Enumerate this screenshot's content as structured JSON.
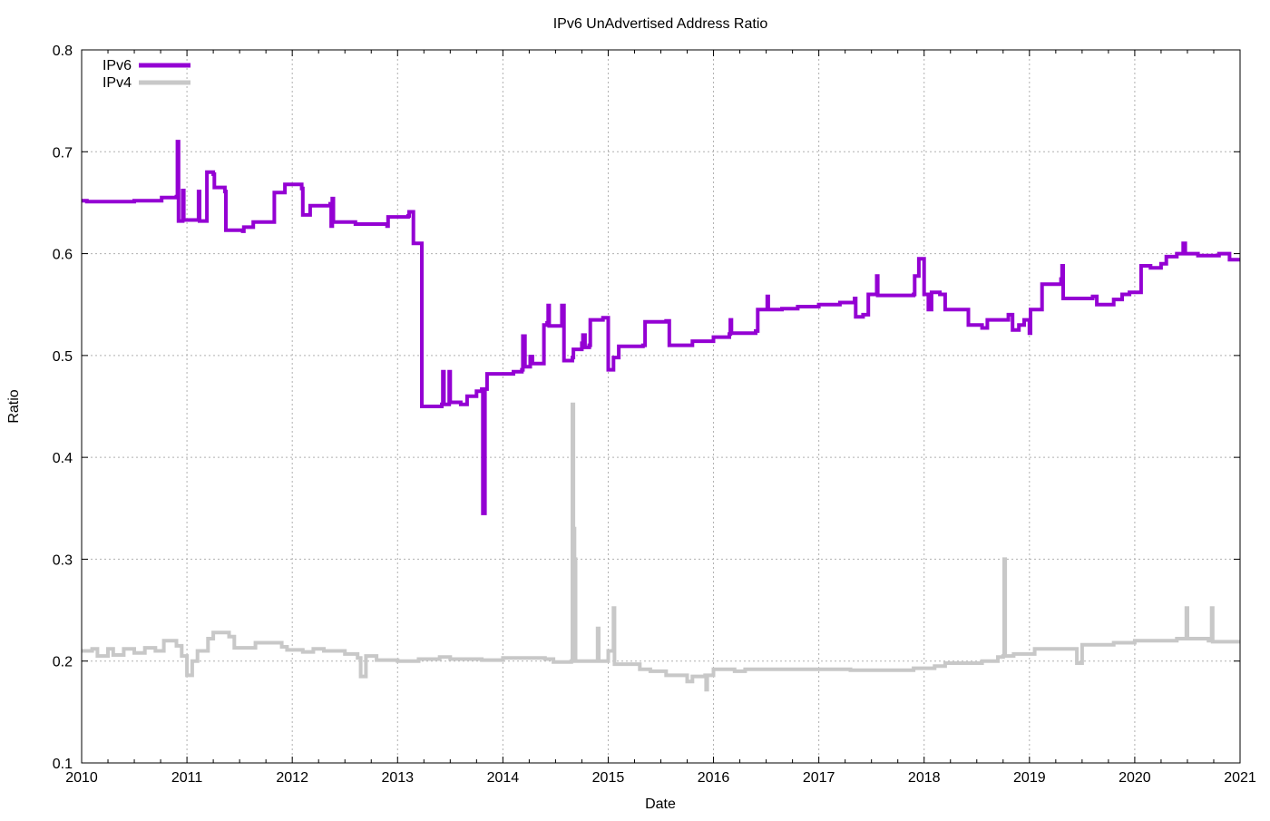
{
  "chart_data": {
    "type": "line",
    "title": "IPv6 UnAdvertised Address Ratio",
    "xlabel": "Date",
    "ylabel": "Ratio",
    "xlim": [
      2010,
      2021
    ],
    "ylim": [
      0.1,
      0.8
    ],
    "x_ticks": [
      "2010",
      "2011",
      "2012",
      "2013",
      "2014",
      "2015",
      "2016",
      "2017",
      "2018",
      "2019",
      "2020",
      "2021"
    ],
    "y_ticks": [
      "0.1",
      "0.2",
      "0.3",
      "0.4",
      "0.5",
      "0.6",
      "0.7",
      "0.8"
    ],
    "grid": true,
    "legend_position": "top-left",
    "series": [
      {
        "name": "IPv6",
        "color": "#9400d3",
        "points": [
          [
            2010.0,
            0.652
          ],
          [
            2010.05,
            0.651
          ],
          [
            2010.5,
            0.652
          ],
          [
            2010.75,
            0.652
          ],
          [
            2010.76,
            0.655
          ],
          [
            2010.9,
            0.656
          ],
          [
            2010.91,
            0.71
          ],
          [
            2010.92,
            0.632
          ],
          [
            2010.96,
            0.662
          ],
          [
            2010.97,
            0.633
          ],
          [
            2011.1,
            0.633
          ],
          [
            2011.11,
            0.661
          ],
          [
            2011.12,
            0.632
          ],
          [
            2011.18,
            0.632
          ],
          [
            2011.19,
            0.68
          ],
          [
            2011.25,
            0.678
          ],
          [
            2011.26,
            0.665
          ],
          [
            2011.36,
            0.661
          ],
          [
            2011.37,
            0.623
          ],
          [
            2011.53,
            0.622
          ],
          [
            2011.54,
            0.626
          ],
          [
            2011.62,
            0.626
          ],
          [
            2011.63,
            0.631
          ],
          [
            2011.82,
            0.631
          ],
          [
            2011.83,
            0.66
          ],
          [
            2011.93,
            0.668
          ],
          [
            2012.09,
            0.664
          ],
          [
            2012.1,
            0.638
          ],
          [
            2012.16,
            0.638
          ],
          [
            2012.17,
            0.647
          ],
          [
            2012.36,
            0.649
          ],
          [
            2012.37,
            0.627
          ],
          [
            2012.38,
            0.654
          ],
          [
            2012.39,
            0.631
          ],
          [
            2012.6,
            0.629
          ],
          [
            2012.9,
            0.627
          ],
          [
            2012.91,
            0.636
          ],
          [
            2013.1,
            0.637
          ],
          [
            2013.11,
            0.641
          ],
          [
            2013.15,
            0.61
          ],
          [
            2013.23,
            0.45
          ],
          [
            2013.42,
            0.452
          ],
          [
            2013.43,
            0.484
          ],
          [
            2013.44,
            0.452
          ],
          [
            2013.48,
            0.452
          ],
          [
            2013.49,
            0.484
          ],
          [
            2013.5,
            0.454
          ],
          [
            2013.6,
            0.452
          ],
          [
            2013.66,
            0.46
          ],
          [
            2013.75,
            0.465
          ],
          [
            2013.8,
            0.467
          ],
          [
            2013.81,
            0.345
          ],
          [
            2013.83,
            0.467
          ],
          [
            2013.85,
            0.482
          ],
          [
            2014.1,
            0.484
          ],
          [
            2014.18,
            0.486
          ],
          [
            2014.19,
            0.519
          ],
          [
            2014.21,
            0.489
          ],
          [
            2014.26,
            0.499
          ],
          [
            2014.28,
            0.492
          ],
          [
            2014.34,
            0.492
          ],
          [
            2014.39,
            0.53
          ],
          [
            2014.42,
            0.532
          ],
          [
            2014.43,
            0.549
          ],
          [
            2014.44,
            0.529
          ],
          [
            2014.55,
            0.529
          ],
          [
            2014.56,
            0.549
          ],
          [
            2014.58,
            0.495
          ],
          [
            2014.66,
            0.498
          ],
          [
            2014.67,
            0.506
          ],
          [
            2014.75,
            0.512
          ],
          [
            2014.76,
            0.52
          ],
          [
            2014.78,
            0.508
          ],
          [
            2014.82,
            0.51
          ],
          [
            2014.83,
            0.535
          ],
          [
            2014.95,
            0.537
          ],
          [
            2015.0,
            0.486
          ],
          [
            2015.05,
            0.498
          ],
          [
            2015.1,
            0.509
          ],
          [
            2015.33,
            0.51
          ],
          [
            2015.35,
            0.533
          ],
          [
            2015.55,
            0.534
          ],
          [
            2015.58,
            0.51
          ],
          [
            2015.8,
            0.514
          ],
          [
            2016.0,
            0.518
          ],
          [
            2016.15,
            0.521
          ],
          [
            2016.16,
            0.535
          ],
          [
            2016.17,
            0.522
          ],
          [
            2016.4,
            0.524
          ],
          [
            2016.42,
            0.545
          ],
          [
            2016.51,
            0.558
          ],
          [
            2016.52,
            0.545
          ],
          [
            2016.65,
            0.546
          ],
          [
            2016.8,
            0.548
          ],
          [
            2017.0,
            0.55
          ],
          [
            2017.2,
            0.552
          ],
          [
            2017.34,
            0.556
          ],
          [
            2017.35,
            0.538
          ],
          [
            2017.42,
            0.54
          ],
          [
            2017.47,
            0.56
          ],
          [
            2017.55,
            0.578
          ],
          [
            2017.56,
            0.559
          ],
          [
            2017.9,
            0.56
          ],
          [
            2017.91,
            0.578
          ],
          [
            2017.95,
            0.595
          ],
          [
            2018.0,
            0.56
          ],
          [
            2018.04,
            0.545
          ],
          [
            2018.07,
            0.562
          ],
          [
            2018.15,
            0.56
          ],
          [
            2018.2,
            0.545
          ],
          [
            2018.4,
            0.545
          ],
          [
            2018.42,
            0.53
          ],
          [
            2018.55,
            0.527
          ],
          [
            2018.6,
            0.535
          ],
          [
            2018.8,
            0.54
          ],
          [
            2018.84,
            0.525
          ],
          [
            2018.9,
            0.53
          ],
          [
            2018.95,
            0.535
          ],
          [
            2019.0,
            0.522
          ],
          [
            2019.01,
            0.545
          ],
          [
            2019.1,
            0.545
          ],
          [
            2019.12,
            0.57
          ],
          [
            2019.3,
            0.575
          ],
          [
            2019.31,
            0.588
          ],
          [
            2019.32,
            0.556
          ],
          [
            2019.6,
            0.558
          ],
          [
            2019.64,
            0.55
          ],
          [
            2019.8,
            0.555
          ],
          [
            2019.88,
            0.56
          ],
          [
            2019.95,
            0.562
          ],
          [
            2020.04,
            0.562
          ],
          [
            2020.06,
            0.588
          ],
          [
            2020.15,
            0.586
          ],
          [
            2020.25,
            0.59
          ],
          [
            2020.3,
            0.597
          ],
          [
            2020.4,
            0.6
          ],
          [
            2020.45,
            0.6
          ],
          [
            2020.46,
            0.61
          ],
          [
            2020.48,
            0.6
          ],
          [
            2020.6,
            0.598
          ],
          [
            2020.75,
            0.598
          ],
          [
            2020.8,
            0.6
          ],
          [
            2020.9,
            0.594
          ],
          [
            2021.0,
            0.594
          ]
        ]
      },
      {
        "name": "IPv4",
        "color": "#c8c8c8",
        "points": [
          [
            2010.0,
            0.21
          ],
          [
            2010.1,
            0.212
          ],
          [
            2010.15,
            0.205
          ],
          [
            2010.25,
            0.212
          ],
          [
            2010.3,
            0.206
          ],
          [
            2010.4,
            0.212
          ],
          [
            2010.5,
            0.208
          ],
          [
            2010.6,
            0.213
          ],
          [
            2010.7,
            0.21
          ],
          [
            2010.78,
            0.22
          ],
          [
            2010.9,
            0.215
          ],
          [
            2010.95,
            0.205
          ],
          [
            2011.0,
            0.186
          ],
          [
            2011.05,
            0.2
          ],
          [
            2011.1,
            0.21
          ],
          [
            2011.2,
            0.222
          ],
          [
            2011.25,
            0.228
          ],
          [
            2011.4,
            0.224
          ],
          [
            2011.45,
            0.213
          ],
          [
            2011.6,
            0.213
          ],
          [
            2011.65,
            0.218
          ],
          [
            2011.9,
            0.214
          ],
          [
            2011.95,
            0.211
          ],
          [
            2012.1,
            0.209
          ],
          [
            2012.2,
            0.212
          ],
          [
            2012.3,
            0.21
          ],
          [
            2012.5,
            0.207
          ],
          [
            2012.62,
            0.203
          ],
          [
            2012.65,
            0.185
          ],
          [
            2012.7,
            0.205
          ],
          [
            2012.8,
            0.201
          ],
          [
            2013.0,
            0.2
          ],
          [
            2013.2,
            0.202
          ],
          [
            2013.4,
            0.204
          ],
          [
            2013.5,
            0.202
          ],
          [
            2013.8,
            0.201
          ],
          [
            2014.0,
            0.203
          ],
          [
            2014.2,
            0.203
          ],
          [
            2014.4,
            0.202
          ],
          [
            2014.48,
            0.199
          ],
          [
            2014.6,
            0.199
          ],
          [
            2014.65,
            0.2
          ],
          [
            2014.66,
            0.452
          ],
          [
            2014.67,
            0.33
          ],
          [
            2014.68,
            0.3
          ],
          [
            2014.69,
            0.2
          ],
          [
            2014.8,
            0.2
          ],
          [
            2014.9,
            0.232
          ],
          [
            2014.91,
            0.2
          ],
          [
            2015.0,
            0.21
          ],
          [
            2015.05,
            0.252
          ],
          [
            2015.06,
            0.197
          ],
          [
            2015.2,
            0.197
          ],
          [
            2015.3,
            0.192
          ],
          [
            2015.4,
            0.19
          ],
          [
            2015.55,
            0.186
          ],
          [
            2015.7,
            0.186
          ],
          [
            2015.75,
            0.18
          ],
          [
            2015.8,
            0.185
          ],
          [
            2015.92,
            0.186
          ],
          [
            2015.93,
            0.172
          ],
          [
            2015.94,
            0.186
          ],
          [
            2016.0,
            0.192
          ],
          [
            2016.2,
            0.19
          ],
          [
            2016.3,
            0.192
          ],
          [
            2016.7,
            0.192
          ],
          [
            2017.0,
            0.192
          ],
          [
            2017.3,
            0.191
          ],
          [
            2017.7,
            0.191
          ],
          [
            2017.9,
            0.193
          ],
          [
            2018.1,
            0.195
          ],
          [
            2018.2,
            0.198
          ],
          [
            2018.5,
            0.198
          ],
          [
            2018.55,
            0.2
          ],
          [
            2018.7,
            0.204
          ],
          [
            2018.75,
            0.205
          ],
          [
            2018.76,
            0.3
          ],
          [
            2018.77,
            0.205
          ],
          [
            2018.85,
            0.207
          ],
          [
            2019.0,
            0.207
          ],
          [
            2019.05,
            0.212
          ],
          [
            2019.4,
            0.212
          ],
          [
            2019.45,
            0.198
          ],
          [
            2019.5,
            0.216
          ],
          [
            2019.7,
            0.216
          ],
          [
            2019.8,
            0.218
          ],
          [
            2020.0,
            0.22
          ],
          [
            2020.2,
            0.22
          ],
          [
            2020.4,
            0.222
          ],
          [
            2020.48,
            0.222
          ],
          [
            2020.49,
            0.252
          ],
          [
            2020.5,
            0.222
          ],
          [
            2020.7,
            0.22
          ],
          [
            2020.73,
            0.252
          ],
          [
            2020.74,
            0.219
          ],
          [
            2021.0,
            0.219
          ]
        ]
      }
    ]
  }
}
